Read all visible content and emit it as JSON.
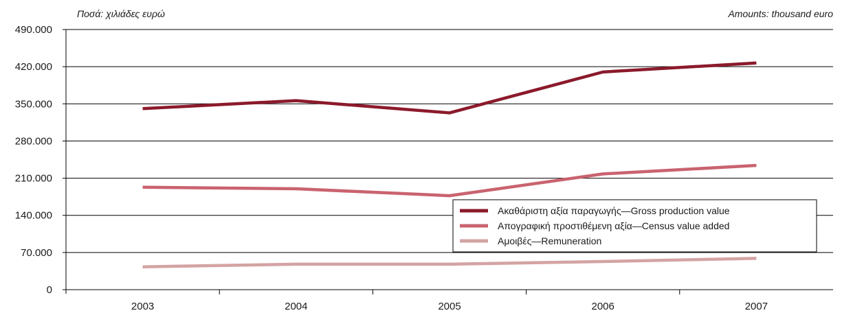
{
  "notes": {
    "left": "Ποσά: χιλιάδες ευρώ",
    "right": "Amounts: thousand euro"
  },
  "colors": {
    "gross": "#8b1a2b",
    "census": "#c9636f",
    "remuneration": "#d4a3a3",
    "grid": "#000000"
  },
  "chart_data": {
    "type": "line",
    "categories": [
      "2003",
      "2004",
      "2005",
      "2006",
      "2007"
    ],
    "ylim": [
      0,
      490000
    ],
    "yticks": [
      0,
      70000,
      140000,
      210000,
      280000,
      350000,
      420000,
      490000
    ],
    "yticklabels": [
      "0",
      "70.000",
      "140.000",
      "210.000",
      "280.000",
      "350.000",
      "420.000",
      "490.000"
    ],
    "grid": true,
    "legend_position": "center-right",
    "series": [
      {
        "name": "Ακαθάριστη αξία παραγωγής—Gross production value",
        "color_key": "gross",
        "values": [
          341000,
          356000,
          333000,
          410000,
          427000
        ]
      },
      {
        "name": "Απογραφική προστιθέμενη αξία—Census value added",
        "color_key": "census",
        "values": [
          193000,
          190000,
          177000,
          218000,
          234000
        ]
      },
      {
        "name": "Αμοιβές—Remuneration",
        "color_key": "remuneration",
        "values": [
          43000,
          48000,
          48000,
          53000,
          59000
        ]
      }
    ]
  }
}
